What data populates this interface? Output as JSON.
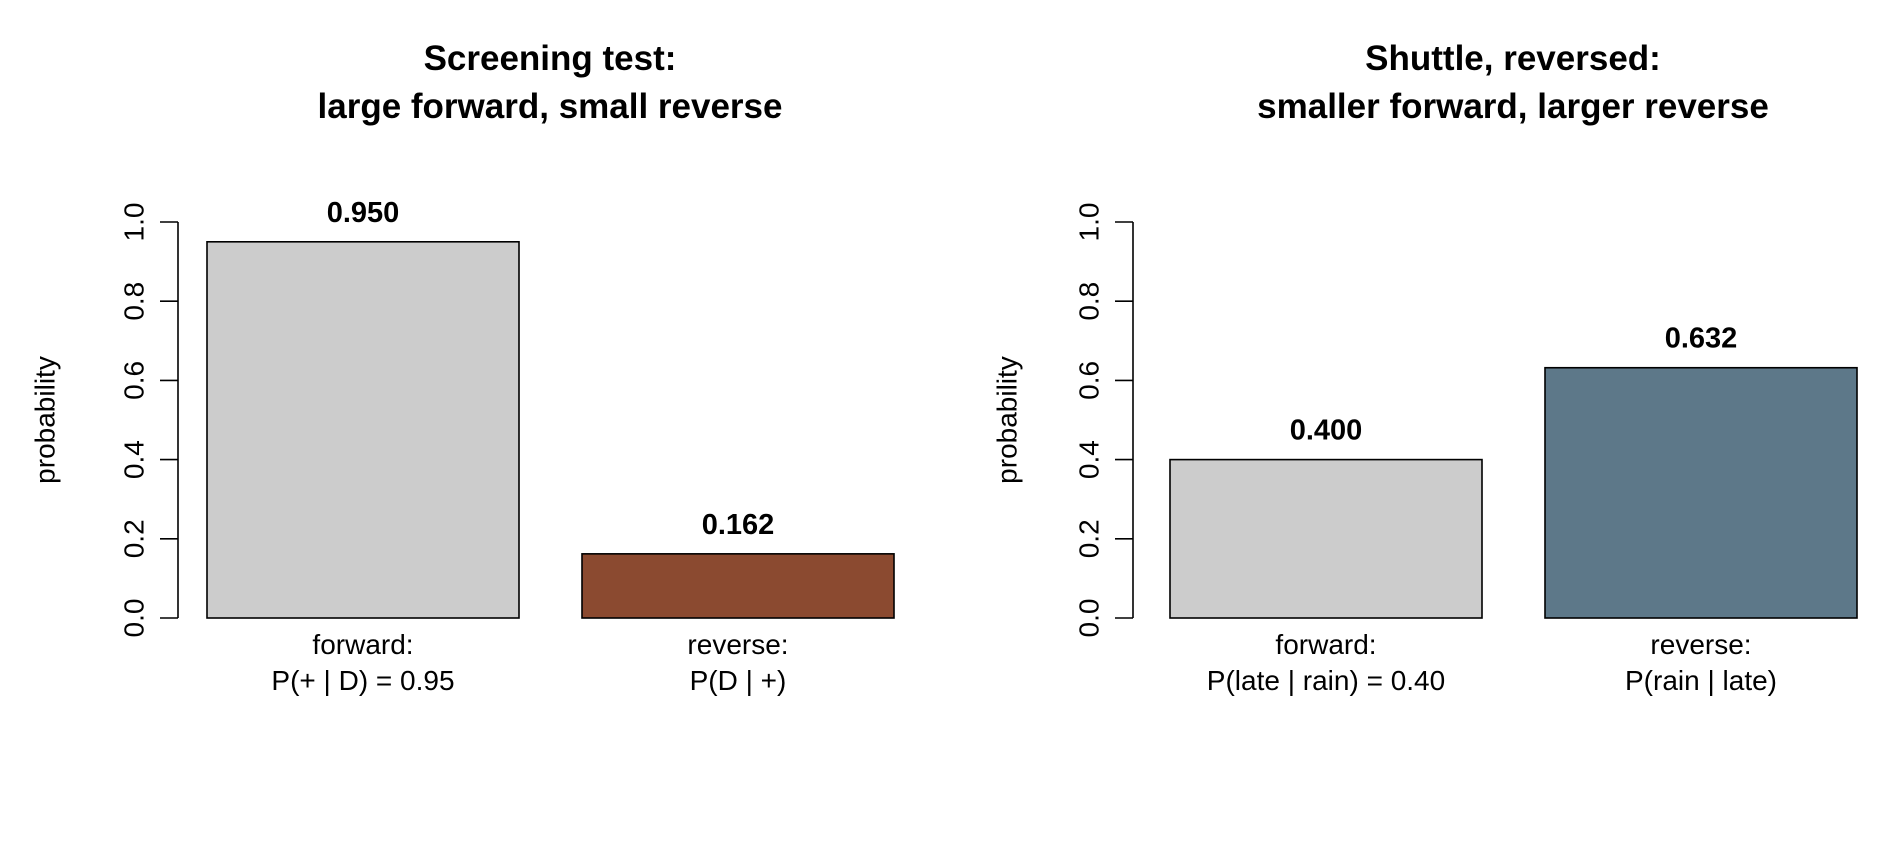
{
  "chart_data": [
    {
      "type": "bar",
      "title": [
        "Screening test:",
        "large forward, small reverse"
      ],
      "ylabel": "probability",
      "ylim": [
        0,
        1
      ],
      "yticks": [
        0,
        0.2,
        0.4,
        0.6,
        0.8,
        1
      ],
      "ytick_labels": [
        "0.0",
        "0.2",
        "0.4",
        "0.6",
        "0.8",
        "1.0"
      ],
      "categories": [
        [
          "forward:",
          "P(+ | D) = 0.95"
        ],
        [
          "reverse:",
          "P(D | +)"
        ]
      ],
      "values": [
        0.95,
        0.162
      ],
      "value_labels": [
        "0.950",
        "0.162"
      ],
      "colors": [
        "#cccccc",
        "#8b4a30"
      ],
      "grid": false,
      "legend": "none"
    },
    {
      "type": "bar",
      "title": [
        "Shuttle, reversed:",
        "smaller forward, larger reverse"
      ],
      "ylabel": "probability",
      "ylim": [
        0,
        1
      ],
      "yticks": [
        0,
        0.2,
        0.4,
        0.6,
        0.8,
        1
      ],
      "ytick_labels": [
        "0.0",
        "0.2",
        "0.4",
        "0.6",
        "0.8",
        "1.0"
      ],
      "categories": [
        [
          "forward:",
          "P(late | rain) = 0.40"
        ],
        [
          "reverse:",
          "P(rain | late)"
        ]
      ],
      "values": [
        0.4,
        0.632
      ],
      "value_labels": [
        "0.400",
        "0.632"
      ],
      "colors": [
        "#cccccc",
        "#5d7889"
      ],
      "grid": false,
      "legend": "none"
    }
  ]
}
